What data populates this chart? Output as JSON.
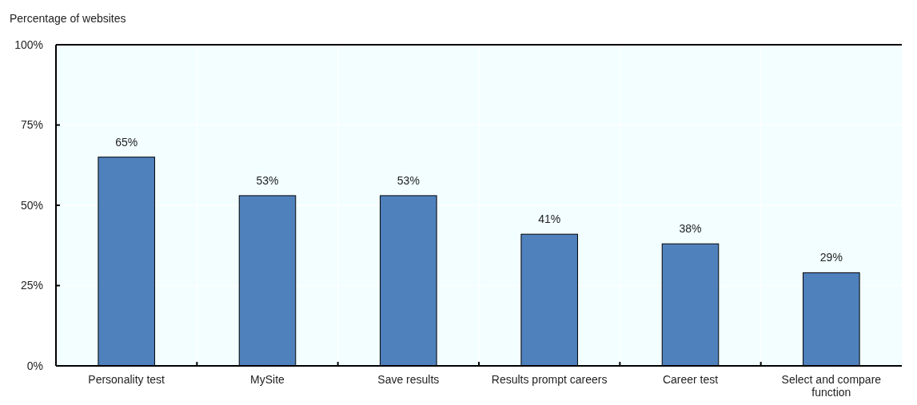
{
  "chart_data": {
    "type": "bar",
    "ylabel": "Percentage of websites",
    "categories": [
      "Personality test",
      "MySite",
      "Save results",
      "Results prompt careers",
      "Career test",
      "Select and compare function"
    ],
    "values": [
      65,
      53,
      53,
      41,
      38,
      29
    ],
    "value_labels": [
      "65%",
      "53%",
      "53%",
      "41%",
      "38%",
      "29%"
    ],
    "color": "#4f81bd",
    "ylim": [
      0,
      100
    ],
    "yticks": [
      {
        "value": 0,
        "label": "0%"
      },
      {
        "value": 25,
        "label": "25%"
      },
      {
        "value": 50,
        "label": "50%"
      },
      {
        "value": 75,
        "label": "75%"
      },
      {
        "value": 100,
        "label": "100%"
      }
    ],
    "grid": true
  }
}
